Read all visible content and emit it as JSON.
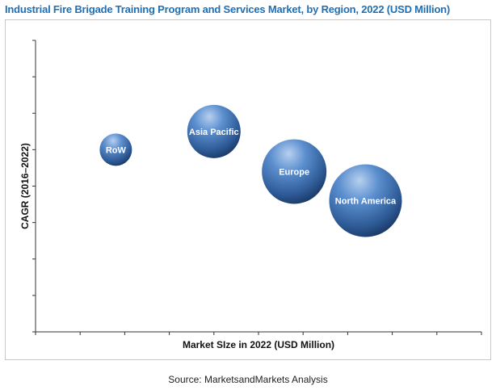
{
  "title": "Industrial Fire Brigade Training Program and Services Market, by Region,  2022 (USD Million)",
  "source": "Source: MarketsandMarkets Analysis",
  "colors": {
    "title": "#1f6fb5",
    "bubble_light": "#8fb4e3",
    "bubble_mid": "#3f6fa8",
    "bubble_dark": "#17345f",
    "axis": "#333333"
  },
  "chart_data": {
    "type": "scatter",
    "title": "Industrial Fire Brigade Training Program and Services Market, by Region,  2022 (USD Million)",
    "xlabel": "Market SIze in 2022 (USD Million)",
    "ylabel": "CAGR (2016–2022)",
    "grid": false,
    "x_ticks": 10,
    "y_ticks": 8,
    "xlim": [
      0,
      10
    ],
    "ylim": [
      0,
      8
    ],
    "points": [
      {
        "name": "RoW",
        "x": 1.8,
        "y": 5.0,
        "size": 20
      },
      {
        "name": "Asia Pacific",
        "x": 4.0,
        "y": 5.5,
        "size": 33
      },
      {
        "name": "Europe",
        "x": 5.8,
        "y": 4.4,
        "size": 40
      },
      {
        "name": "North America",
        "x": 7.4,
        "y": 3.6,
        "size": 45
      }
    ]
  }
}
